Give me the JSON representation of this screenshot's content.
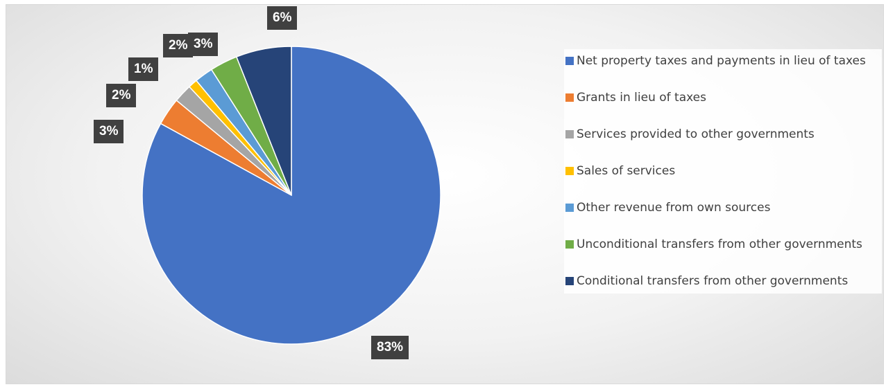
{
  "chart_data": {
    "type": "pie",
    "title": "",
    "slices": [
      {
        "label": "Net property taxes and payments in lieu of taxes",
        "value": 83,
        "display": "83%",
        "color": "#4472c4"
      },
      {
        "label": "Grants in lieu of taxes",
        "value": 3,
        "display": "3%",
        "color": "#ed7d31"
      },
      {
        "label": "Services provided to other governments",
        "value": 2,
        "display": "2%",
        "color": "#a5a5a5"
      },
      {
        "label": "Sales of services",
        "value": 1,
        "display": "1%",
        "color": "#ffc000"
      },
      {
        "label": "Other revenue from own sources",
        "value": 2,
        "display": "2%",
        "color": "#5b9bd5"
      },
      {
        "label": "Unconditional transfers from other governments",
        "value": 3,
        "display": "3%",
        "color": "#70ad47"
      },
      {
        "label": "Conditional transfers from other governments",
        "value": 6,
        "display": "6%",
        "color": "#264478"
      }
    ],
    "legend_position": "right",
    "start_angle_deg": 0,
    "direction": "clockwise-from-bottom-right"
  }
}
